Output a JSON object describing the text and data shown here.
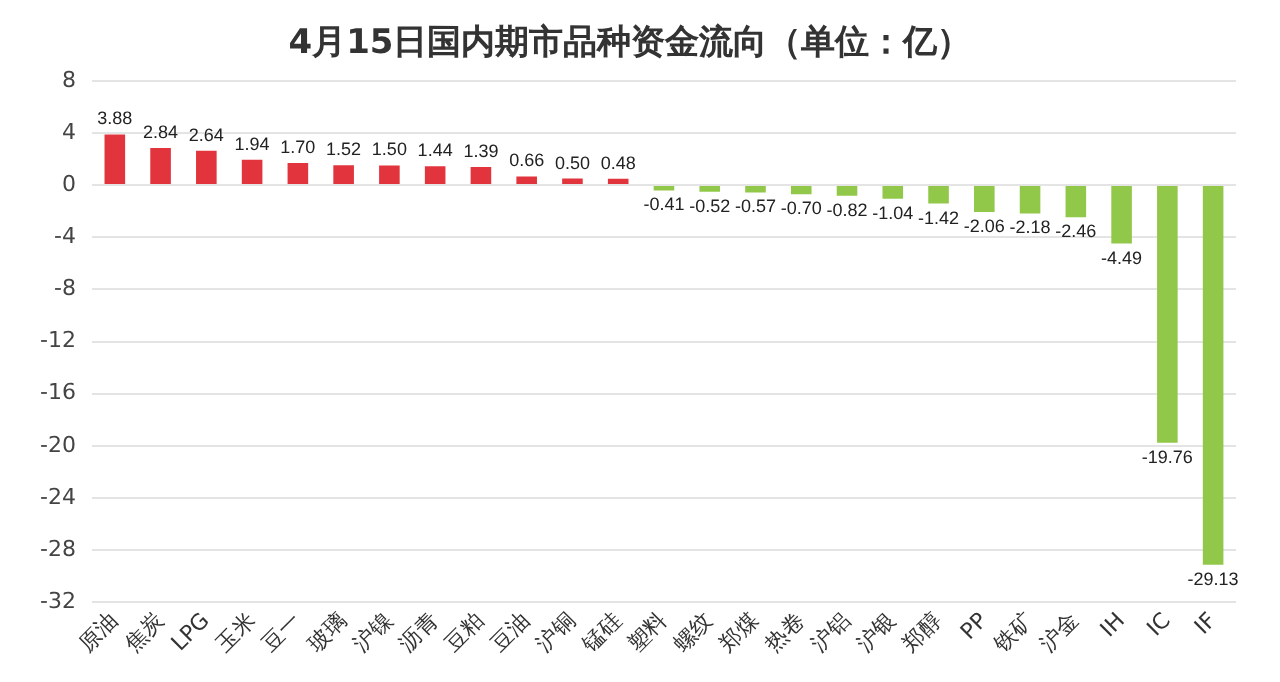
{
  "chart_data": {
    "type": "bar",
    "title": "4月15日国内期市品种资金流向（单位：亿）",
    "categories": [
      "原油",
      "焦炭",
      "LPG",
      "玉米",
      "豆一",
      "玻璃",
      "沪镍",
      "沥青",
      "豆粕",
      "豆油",
      "沪铜",
      "锰硅",
      "塑料",
      "螺纹",
      "郑煤",
      "热卷",
      "沪铝",
      "沪银",
      "郑醇",
      "PP",
      "铁矿",
      "沪金",
      "IH",
      "IC",
      "IF"
    ],
    "values": [
      3.88,
      2.84,
      2.64,
      1.94,
      1.7,
      1.52,
      1.5,
      1.44,
      1.39,
      0.66,
      0.5,
      0.48,
      -0.41,
      -0.52,
      -0.57,
      -0.7,
      -0.82,
      -1.04,
      -1.42,
      -2.06,
      -2.18,
      -2.46,
      -4.49,
      -19.76,
      -29.13
    ],
    "value_labels": [
      "3.88",
      "2.84",
      "2.64",
      "1.94",
      "1.70",
      "1.52",
      "1.50",
      "1.44",
      "1.39",
      "0.66",
      "0.50",
      "0.48",
      "-0.41",
      "-0.52",
      "-0.57",
      "-0.70",
      "-0.82",
      "-1.04",
      "-1.42",
      "-2.06",
      "-2.18",
      "-2.46",
      "-4.49",
      "-19.76",
      "-29.13"
    ],
    "colors": [
      "#e2343c",
      "#e2343c",
      "#e2343c",
      "#e2343c",
      "#e2343c",
      "#e2343c",
      "#e2343c",
      "#e2343c",
      "#e2343c",
      "#e2343c",
      "#e2343c",
      "#e2343c",
      "#92c84a",
      "#92c84a",
      "#92c84a",
      "#92c84a",
      "#92c84a",
      "#92c84a",
      "#92c84a",
      "#92c84a",
      "#92c84a",
      "#92c84a",
      "#92c84a",
      "#92c84a",
      "#92c84a"
    ],
    "ylim": [
      -32,
      8
    ],
    "yticks": [
      8,
      4,
      0,
      -4,
      -8,
      -12,
      -16,
      -20,
      -24,
      -28,
      -32
    ],
    "grid": "y",
    "legend": false
  }
}
